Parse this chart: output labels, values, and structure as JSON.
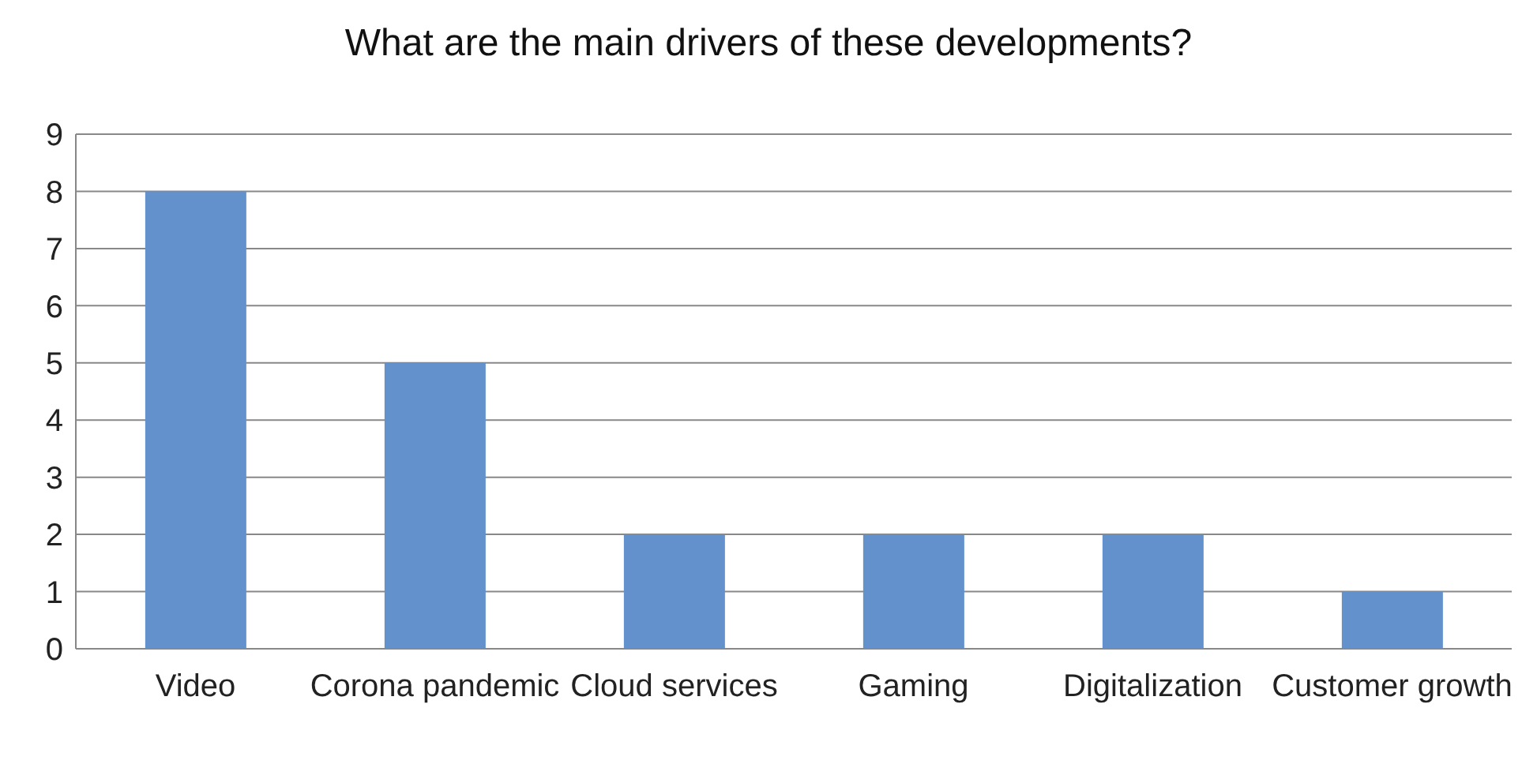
{
  "chart_data": {
    "type": "bar",
    "title": "What are the main drivers of these developments?",
    "categories": [
      "Video",
      "Corona pandemic",
      "Cloud services",
      "Gaming",
      "Digitalization",
      "Customer growth"
    ],
    "values": [
      8,
      5,
      2,
      2,
      2,
      1
    ],
    "color": "#6391cb",
    "ylim": [
      0,
      9
    ],
    "yticks": [
      0,
      1,
      2,
      3,
      4,
      5,
      6,
      7,
      8,
      9
    ],
    "grid": "y",
    "legend": false
  }
}
